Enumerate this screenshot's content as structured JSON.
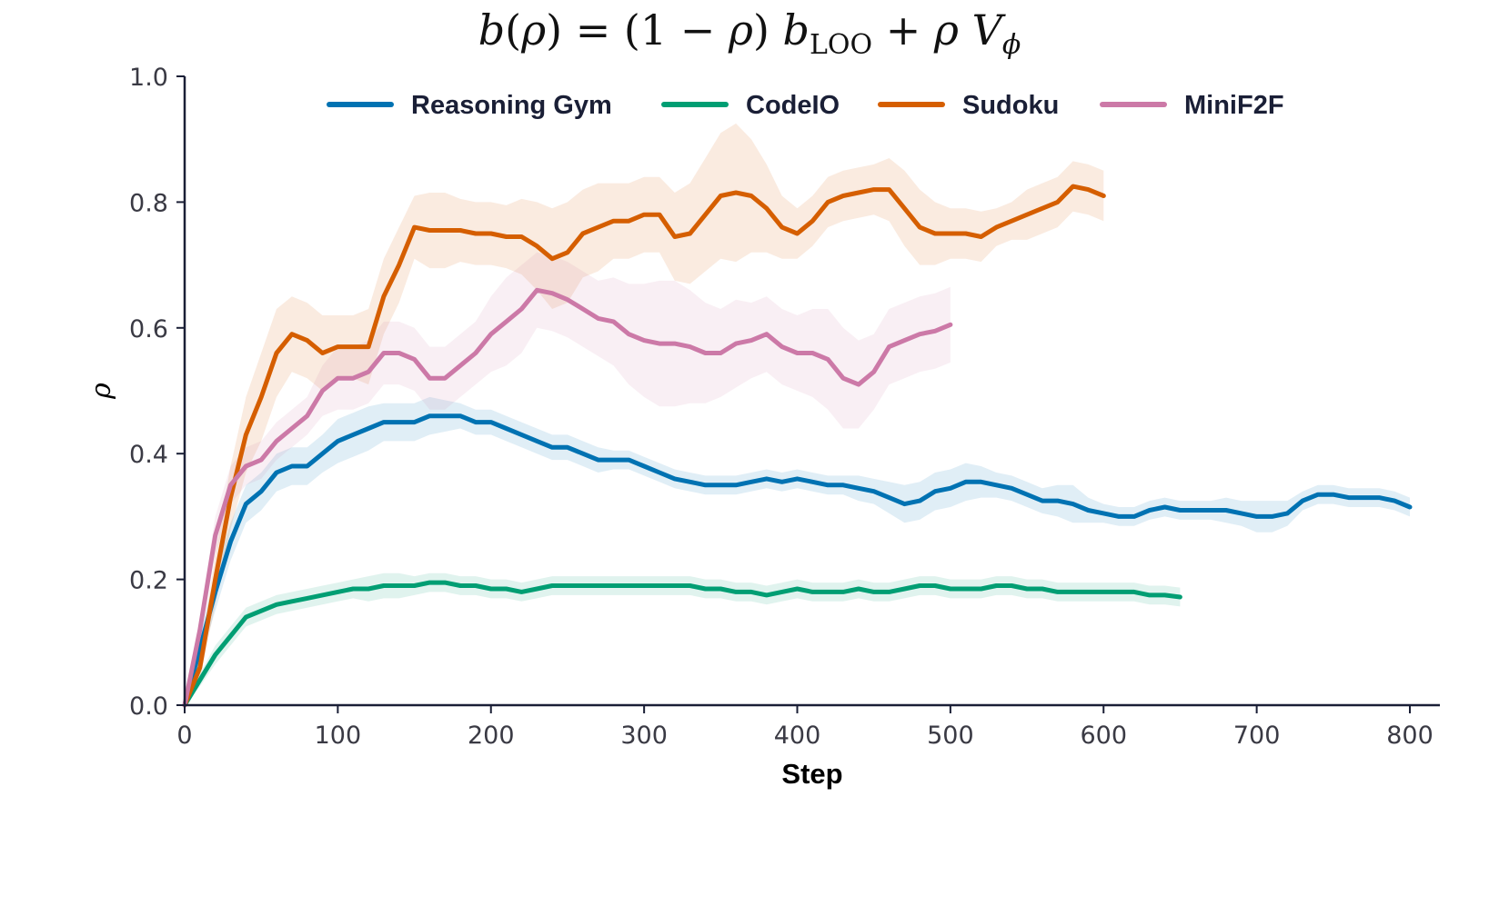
{
  "chart_data": {
    "type": "line",
    "title": "b(ρ) = (1 − ρ) b_LOO + ρ V_ϕ",
    "title_parts": {
      "b": "b",
      "lhs_open": "(",
      "rho": "ρ",
      "lhs_close": ")",
      "eq": " = (1 − ",
      "mid_close": ") ",
      "b2": "b",
      "loo": "LOO",
      "plus": " + ",
      "rho2": "ρ",
      "space": " ",
      "v": "V",
      "phi": "ϕ"
    },
    "xlabel": "Step",
    "ylabel": "ρ",
    "xlim": [
      0,
      820
    ],
    "ylim": [
      0,
      1.0
    ],
    "xticks": [
      "0",
      "100",
      "200",
      "300",
      "400",
      "500",
      "600",
      "700",
      "800"
    ],
    "yticks": [
      "0.0",
      "0.2",
      "0.4",
      "0.6",
      "0.8",
      "1.0"
    ],
    "legend": "top-center",
    "grid": false,
    "series": [
      {
        "name": "Reasoning Gym",
        "color": "#0072b2",
        "x": [
          0,
          10,
          20,
          30,
          40,
          50,
          60,
          70,
          80,
          90,
          100,
          110,
          120,
          130,
          140,
          150,
          160,
          170,
          180,
          190,
          200,
          210,
          220,
          230,
          240,
          250,
          260,
          270,
          280,
          290,
          300,
          310,
          320,
          330,
          340,
          350,
          360,
          370,
          380,
          390,
          400,
          410,
          420,
          430,
          440,
          450,
          460,
          470,
          480,
          490,
          500,
          510,
          520,
          530,
          540,
          550,
          560,
          570,
          580,
          590,
          600,
          610,
          620,
          630,
          640,
          650,
          660,
          670,
          680,
          690,
          700,
          710,
          720,
          730,
          740,
          750,
          760,
          770,
          780,
          790,
          800
        ],
        "y": [
          0.0,
          0.09,
          0.18,
          0.26,
          0.32,
          0.34,
          0.37,
          0.38,
          0.38,
          0.4,
          0.42,
          0.43,
          0.44,
          0.45,
          0.45,
          0.45,
          0.46,
          0.46,
          0.46,
          0.45,
          0.45,
          0.44,
          0.43,
          0.42,
          0.41,
          0.41,
          0.4,
          0.39,
          0.39,
          0.39,
          0.38,
          0.37,
          0.36,
          0.355,
          0.35,
          0.35,
          0.35,
          0.355,
          0.36,
          0.355,
          0.36,
          0.355,
          0.35,
          0.35,
          0.345,
          0.34,
          0.33,
          0.32,
          0.325,
          0.34,
          0.345,
          0.355,
          0.355,
          0.35,
          0.345,
          0.335,
          0.325,
          0.325,
          0.32,
          0.31,
          0.305,
          0.3,
          0.3,
          0.31,
          0.315,
          0.31,
          0.31,
          0.31,
          0.31,
          0.305,
          0.3,
          0.3,
          0.305,
          0.325,
          0.335,
          0.335,
          0.33,
          0.33,
          0.33,
          0.325,
          0.315
        ],
        "band": [
          0.0,
          0.02,
          0.03,
          0.03,
          0.03,
          0.03,
          0.03,
          0.03,
          0.03,
          0.03,
          0.035,
          0.035,
          0.035,
          0.03,
          0.03,
          0.03,
          0.03,
          0.025,
          0.02,
          0.02,
          0.02,
          0.02,
          0.02,
          0.02,
          0.02,
          0.02,
          0.02,
          0.02,
          0.015,
          0.015,
          0.015,
          0.015,
          0.015,
          0.015,
          0.015,
          0.015,
          0.015,
          0.015,
          0.015,
          0.015,
          0.015,
          0.015,
          0.015,
          0.015,
          0.02,
          0.02,
          0.025,
          0.03,
          0.03,
          0.03,
          0.03,
          0.03,
          0.025,
          0.02,
          0.02,
          0.02,
          0.02,
          0.025,
          0.03,
          0.02,
          0.015,
          0.015,
          0.015,
          0.015,
          0.015,
          0.015,
          0.015,
          0.015,
          0.02,
          0.02,
          0.025,
          0.025,
          0.02,
          0.015,
          0.015,
          0.015,
          0.015,
          0.015,
          0.015,
          0.015,
          0.015
        ]
      },
      {
        "name": "CodeIO",
        "color": "#009e73",
        "x": [
          0,
          10,
          20,
          30,
          40,
          50,
          60,
          70,
          80,
          90,
          100,
          110,
          120,
          130,
          140,
          150,
          160,
          170,
          180,
          190,
          200,
          210,
          220,
          230,
          240,
          250,
          260,
          270,
          280,
          290,
          300,
          310,
          320,
          330,
          340,
          350,
          360,
          370,
          380,
          390,
          400,
          410,
          420,
          430,
          440,
          450,
          460,
          470,
          480,
          490,
          500,
          510,
          520,
          530,
          540,
          550,
          560,
          570,
          580,
          590,
          600,
          610,
          620,
          630,
          640,
          650
        ],
        "y": [
          0.0,
          0.04,
          0.08,
          0.11,
          0.14,
          0.15,
          0.16,
          0.165,
          0.17,
          0.175,
          0.18,
          0.185,
          0.185,
          0.19,
          0.19,
          0.19,
          0.195,
          0.195,
          0.19,
          0.19,
          0.185,
          0.185,
          0.18,
          0.185,
          0.19,
          0.19,
          0.19,
          0.19,
          0.19,
          0.19,
          0.19,
          0.19,
          0.19,
          0.19,
          0.185,
          0.185,
          0.18,
          0.18,
          0.175,
          0.18,
          0.185,
          0.18,
          0.18,
          0.18,
          0.185,
          0.18,
          0.18,
          0.185,
          0.19,
          0.19,
          0.185,
          0.185,
          0.185,
          0.19,
          0.19,
          0.185,
          0.185,
          0.18,
          0.18,
          0.18,
          0.18,
          0.18,
          0.18,
          0.175,
          0.175,
          0.172
        ],
        "band": [
          0.0,
          0.01,
          0.015,
          0.015,
          0.015,
          0.015,
          0.015,
          0.015,
          0.015,
          0.015,
          0.015,
          0.015,
          0.02,
          0.02,
          0.02,
          0.015,
          0.015,
          0.015,
          0.015,
          0.015,
          0.015,
          0.015,
          0.015,
          0.015,
          0.015,
          0.015,
          0.015,
          0.015,
          0.015,
          0.015,
          0.015,
          0.015,
          0.015,
          0.015,
          0.015,
          0.015,
          0.015,
          0.015,
          0.015,
          0.015,
          0.015,
          0.015,
          0.015,
          0.015,
          0.015,
          0.015,
          0.015,
          0.015,
          0.015,
          0.015,
          0.015,
          0.015,
          0.015,
          0.015,
          0.015,
          0.015,
          0.015,
          0.015,
          0.015,
          0.015,
          0.015,
          0.015,
          0.015,
          0.015,
          0.015,
          0.015
        ]
      },
      {
        "name": "Sudoku",
        "color": "#d55e00",
        "x": [
          0,
          10,
          20,
          30,
          40,
          50,
          60,
          70,
          80,
          90,
          100,
          110,
          120,
          130,
          140,
          150,
          160,
          170,
          180,
          190,
          200,
          210,
          220,
          230,
          240,
          250,
          260,
          270,
          280,
          290,
          300,
          310,
          320,
          330,
          340,
          350,
          360,
          370,
          380,
          390,
          400,
          410,
          420,
          430,
          440,
          450,
          460,
          470,
          480,
          490,
          500,
          510,
          520,
          530,
          540,
          550,
          560,
          570,
          580,
          590,
          600
        ],
        "y": [
          0.0,
          0.06,
          0.2,
          0.33,
          0.43,
          0.49,
          0.56,
          0.59,
          0.58,
          0.56,
          0.57,
          0.57,
          0.57,
          0.65,
          0.7,
          0.76,
          0.755,
          0.755,
          0.755,
          0.75,
          0.75,
          0.745,
          0.745,
          0.73,
          0.71,
          0.72,
          0.75,
          0.76,
          0.77,
          0.77,
          0.78,
          0.78,
          0.745,
          0.75,
          0.78,
          0.81,
          0.815,
          0.81,
          0.79,
          0.76,
          0.75,
          0.77,
          0.8,
          0.81,
          0.815,
          0.82,
          0.82,
          0.79,
          0.76,
          0.75,
          0.75,
          0.75,
          0.745,
          0.76,
          0.77,
          0.78,
          0.79,
          0.8,
          0.825,
          0.82,
          0.81
        ],
        "band": [
          0.0,
          0.02,
          0.04,
          0.05,
          0.06,
          0.07,
          0.07,
          0.06,
          0.06,
          0.06,
          0.05,
          0.05,
          0.06,
          0.06,
          0.06,
          0.05,
          0.06,
          0.06,
          0.05,
          0.05,
          0.05,
          0.05,
          0.06,
          0.07,
          0.08,
          0.08,
          0.07,
          0.07,
          0.06,
          0.06,
          0.06,
          0.06,
          0.07,
          0.08,
          0.09,
          0.1,
          0.11,
          0.09,
          0.07,
          0.05,
          0.04,
          0.04,
          0.04,
          0.04,
          0.04,
          0.04,
          0.05,
          0.06,
          0.06,
          0.05,
          0.04,
          0.04,
          0.04,
          0.03,
          0.03,
          0.04,
          0.04,
          0.04,
          0.04,
          0.04,
          0.04
        ]
      },
      {
        "name": "MiniF2F",
        "color": "#cc79a7",
        "x": [
          0,
          10,
          20,
          30,
          40,
          50,
          60,
          70,
          80,
          90,
          100,
          110,
          120,
          130,
          140,
          150,
          160,
          170,
          180,
          190,
          200,
          210,
          220,
          230,
          240,
          250,
          260,
          270,
          280,
          290,
          300,
          310,
          320,
          330,
          340,
          350,
          360,
          370,
          380,
          390,
          400,
          410,
          420,
          430,
          440,
          450,
          460,
          470,
          480,
          490,
          500
        ],
        "y": [
          0.0,
          0.12,
          0.27,
          0.35,
          0.38,
          0.39,
          0.42,
          0.44,
          0.46,
          0.5,
          0.52,
          0.52,
          0.53,
          0.56,
          0.56,
          0.55,
          0.52,
          0.52,
          0.54,
          0.56,
          0.59,
          0.61,
          0.63,
          0.66,
          0.655,
          0.645,
          0.63,
          0.615,
          0.61,
          0.59,
          0.58,
          0.575,
          0.575,
          0.57,
          0.56,
          0.56,
          0.575,
          0.58,
          0.59,
          0.57,
          0.56,
          0.56,
          0.55,
          0.52,
          0.51,
          0.53,
          0.57,
          0.58,
          0.59,
          0.595,
          0.605
        ],
        "band": [
          0.0,
          0.02,
          0.03,
          0.03,
          0.03,
          0.03,
          0.03,
          0.03,
          0.03,
          0.04,
          0.05,
          0.05,
          0.05,
          0.05,
          0.05,
          0.05,
          0.05,
          0.05,
          0.05,
          0.05,
          0.06,
          0.07,
          0.07,
          0.06,
          0.06,
          0.06,
          0.06,
          0.06,
          0.07,
          0.08,
          0.09,
          0.1,
          0.1,
          0.09,
          0.08,
          0.07,
          0.07,
          0.06,
          0.06,
          0.06,
          0.06,
          0.07,
          0.08,
          0.08,
          0.07,
          0.06,
          0.06,
          0.06,
          0.06,
          0.06,
          0.06
        ]
      }
    ]
  }
}
